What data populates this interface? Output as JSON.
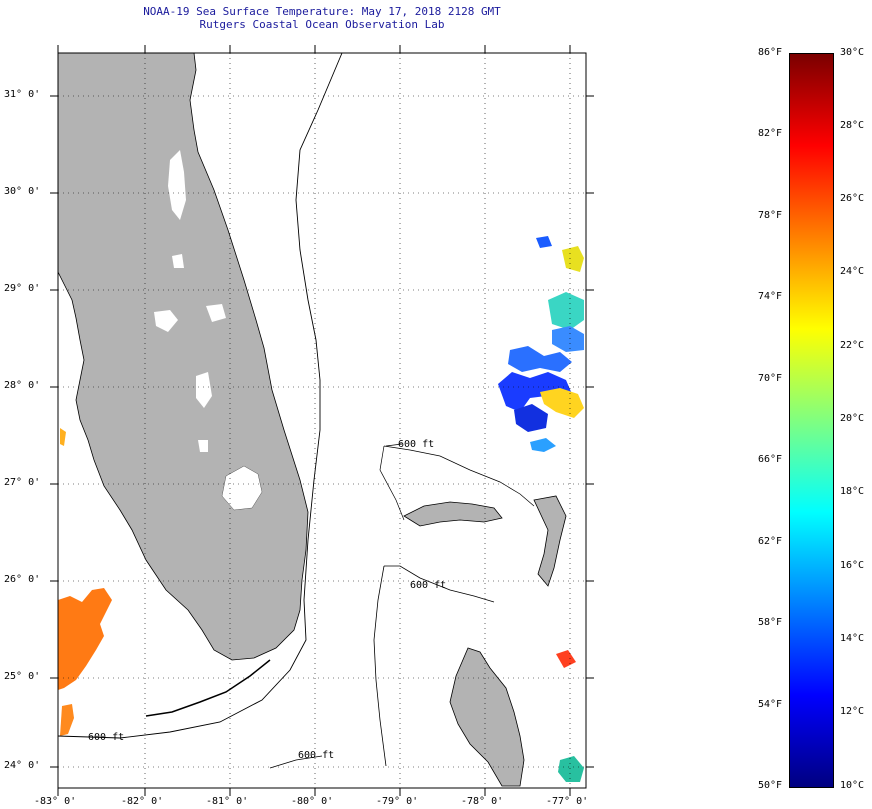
{
  "header": {
    "title": "NOAA-19 Sea Surface Temperature:  May 17, 2018 2128 GMT",
    "subtitle": "Rutgers Coastal Ocean Observation Lab"
  },
  "map": {
    "lat_labels": [
      "31° 0'",
      "30° 0'",
      "29° 0'",
      "28° 0'",
      "27° 0'",
      "26° 0'",
      "25° 0'",
      "24° 0'"
    ],
    "lon_labels": [
      "-83° 0'",
      "-82° 0'",
      "-81° 0'",
      "-80° 0'",
      "-79° 0'",
      "-78° 0'",
      "-77° 0'"
    ],
    "contour_label": "600 ft",
    "land_color": "#b3b3b3"
  },
  "colorbar": {
    "fahrenheit_labels": [
      "86°F",
      "82°F",
      "78°F",
      "74°F",
      "70°F",
      "66°F",
      "62°F",
      "58°F",
      "54°F",
      "50°F"
    ],
    "celsius_labels": [
      "30°C",
      "28°C",
      "26°C",
      "24°C",
      "22°C",
      "20°C",
      "18°C",
      "16°C",
      "14°C",
      "12°C",
      "10°C"
    ],
    "colors": [
      "#7b0000",
      "#ff0000",
      "#ff8000",
      "#ffff00",
      "#80ff80",
      "#00ffff",
      "#0080ff",
      "#0000ff",
      "#000080"
    ]
  }
}
